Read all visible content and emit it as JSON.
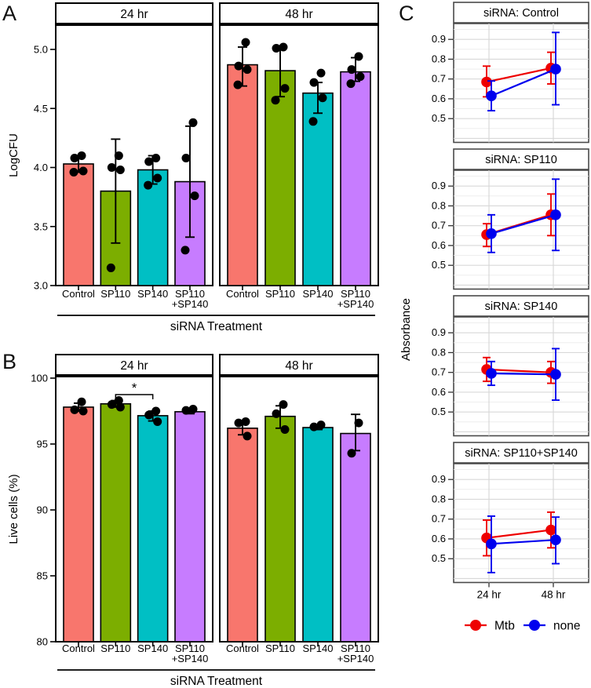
{
  "panels": {
    "a": {
      "letter": "A"
    },
    "b": {
      "letter": "B"
    },
    "c": {
      "letter": "C"
    }
  },
  "colors": {
    "bar_fill": [
      "#F8766D",
      "#7CAE00",
      "#00BFC4",
      "#C77CFF"
    ],
    "mtb": "#EE0000",
    "none": "#0000EE",
    "point": "#000000",
    "grid_major": "#d8d8d8",
    "grid_minor": "#ebebeb",
    "panel_border_ab": "#000000",
    "panel_border_c": "#4a4a4a"
  },
  "chart_data": [
    {
      "id": "A",
      "type": "bar",
      "ylabel": "LogCFU",
      "xlabel": "siRNA Treatment",
      "ylim": [
        3.0,
        5.22
      ],
      "yticks": [
        3.0,
        3.5,
        4.0,
        4.5,
        5.0
      ],
      "ytick_labels": [
        "3.0",
        "3.5",
        "4.0",
        "4.5",
        "5.0"
      ],
      "categories": [
        "Control",
        "SP110",
        "SP140",
        "SP110\n+SP140"
      ],
      "facets": [
        {
          "label": "24 hr",
          "bars": [
            {
              "category": "Control",
              "value": 4.03,
              "err": [
                3.96,
                4.1
              ],
              "points": [
                4.1,
                4.08,
                3.97,
                3.96
              ]
            },
            {
              "category": "SP110",
              "value": 3.8,
              "err": [
                3.36,
                4.24
              ],
              "points": [
                4.1,
                4.0,
                3.98,
                3.15
              ]
            },
            {
              "category": "SP140",
              "value": 3.98,
              "err": [
                3.86,
                4.1
              ],
              "points": [
                4.08,
                4.05,
                3.91,
                3.85
              ]
            },
            {
              "category": "SP110+SP140",
              "value": 3.88,
              "err": [
                3.41,
                4.35
              ],
              "points": [
                4.38,
                4.08,
                3.76,
                3.3
              ]
            }
          ]
        },
        {
          "label": "48 hr",
          "bars": [
            {
              "category": "Control",
              "value": 4.87,
              "err": [
                4.69,
                5.02
              ],
              "points": [
                5.06,
                4.86,
                4.83,
                4.7
              ]
            },
            {
              "category": "SP110",
              "value": 4.82,
              "err": [
                4.6,
                5.01
              ],
              "points": [
                5.02,
                5.01,
                4.67,
                4.57
              ]
            },
            {
              "category": "SP140",
              "value": 4.63,
              "err": [
                4.46,
                4.72
              ],
              "points": [
                4.8,
                4.72,
                4.59,
                4.39
              ]
            },
            {
              "category": "SP110+SP140",
              "value": 4.81,
              "err": [
                4.73,
                4.93
              ],
              "points": [
                4.94,
                4.83,
                4.77,
                4.71
              ]
            }
          ]
        }
      ]
    },
    {
      "id": "B",
      "type": "bar",
      "ylabel": "Live cells (%)",
      "xlabel": "siRNA Treatment",
      "ylim": [
        80,
        100.12
      ],
      "yticks": [
        80,
        85,
        90,
        95,
        100
      ],
      "ytick_labels": [
        "80",
        "85",
        "90",
        "95",
        "100"
      ],
      "categories": [
        "Control",
        "SP110",
        "SP140",
        "SP110\n+SP140"
      ],
      "significance": {
        "facet": "24 hr",
        "from": "SP110",
        "to": "SP140",
        "label": "*",
        "y": 98.75
      },
      "facets": [
        {
          "label": "24 hr",
          "bars": [
            {
              "category": "Control",
              "value": 97.8,
              "err": [
                97.5,
                98.1
              ],
              "points": [
                98.2,
                97.6,
                97.5
              ]
            },
            {
              "category": "SP110",
              "value": 98.05,
              "err": [
                97.8,
                98.3
              ],
              "points": [
                98.3,
                98.0,
                97.8
              ]
            },
            {
              "category": "SP140",
              "value": 97.15,
              "err": [
                96.75,
                97.5
              ],
              "points": [
                97.5,
                97.2,
                96.7
              ]
            },
            {
              "category": "SP110+SP140",
              "value": 97.45,
              "err": [
                97.3,
                97.6
              ],
              "points": [
                97.65,
                97.55
              ]
            }
          ]
        },
        {
          "label": "48 hr",
          "bars": [
            {
              "category": "Control",
              "value": 96.2,
              "err": [
                95.7,
                96.7
              ],
              "points": [
                96.7,
                96.6,
                95.6
              ]
            },
            {
              "category": "SP110",
              "value": 97.1,
              "err": [
                96.2,
                97.9
              ],
              "points": [
                98.0,
                97.3,
                96.1
              ]
            },
            {
              "category": "SP140",
              "value": 96.25,
              "err": [
                96.1,
                96.4
              ],
              "points": [
                96.45,
                96.3
              ]
            },
            {
              "category": "SP110+SP140",
              "value": 95.8,
              "err": [
                94.5,
                97.25
              ],
              "points": [
                96.6,
                94.3
              ]
            }
          ]
        }
      ]
    },
    {
      "id": "C",
      "type": "line",
      "ylabel": "Absorbance",
      "xlabel": "",
      "x_categories": [
        "24 hr",
        "48 hr"
      ],
      "ylim": [
        0.38,
        0.98
      ],
      "yticks": [
        0.5,
        0.6,
        0.7,
        0.8,
        0.9
      ],
      "ytick_labels": [
        "0.5",
        "0.6",
        "0.7",
        "0.8",
        "0.9"
      ],
      "legend": [
        {
          "label": "Mtb",
          "color_key": "mtb"
        },
        {
          "label": "none",
          "color_key": "none"
        }
      ],
      "facets": [
        {
          "label": "siRNA: Control",
          "series": [
            {
              "name": "Mtb",
              "values": [
                0.685,
                0.755
              ],
              "err": [
                [
                  0.61,
                  0.765
                ],
                [
                  0.675,
                  0.835
                ]
              ]
            },
            {
              "name": "none",
              "values": [
                0.615,
                0.75
              ],
              "err": [
                [
                  0.54,
                  0.69
                ],
                [
                  0.57,
                  0.935
                ]
              ]
            }
          ]
        },
        {
          "label": "siRNA: SP110",
          "series": [
            {
              "name": "Mtb",
              "values": [
                0.655,
                0.755
              ],
              "err": [
                [
                  0.595,
                  0.71
                ],
                [
                  0.65,
                  0.86
                ]
              ]
            },
            {
              "name": "none",
              "values": [
                0.66,
                0.755
              ],
              "err": [
                [
                  0.565,
                  0.755
                ],
                [
                  0.575,
                  0.935
                ]
              ]
            }
          ]
        },
        {
          "label": "siRNA: SP140",
          "series": [
            {
              "name": "Mtb",
              "values": [
                0.715,
                0.7
              ],
              "err": [
                [
                  0.655,
                  0.775
                ],
                [
                  0.645,
                  0.755
                ]
              ]
            },
            {
              "name": "none",
              "values": [
                0.695,
                0.69
              ],
              "err": [
                [
                  0.635,
                  0.755
                ],
                [
                  0.56,
                  0.82
                ]
              ]
            }
          ]
        },
        {
          "label": "siRNA: SP110+SP140",
          "series": [
            {
              "name": "Mtb",
              "values": [
                0.605,
                0.645
              ],
              "err": [
                [
                  0.515,
                  0.695
                ],
                [
                  0.555,
                  0.735
                ]
              ]
            },
            {
              "name": "none",
              "values": [
                0.575,
                0.595
              ],
              "err": [
                [
                  0.43,
                  0.715
                ],
                [
                  0.475,
                  0.71
                ]
              ]
            }
          ]
        }
      ]
    }
  ]
}
